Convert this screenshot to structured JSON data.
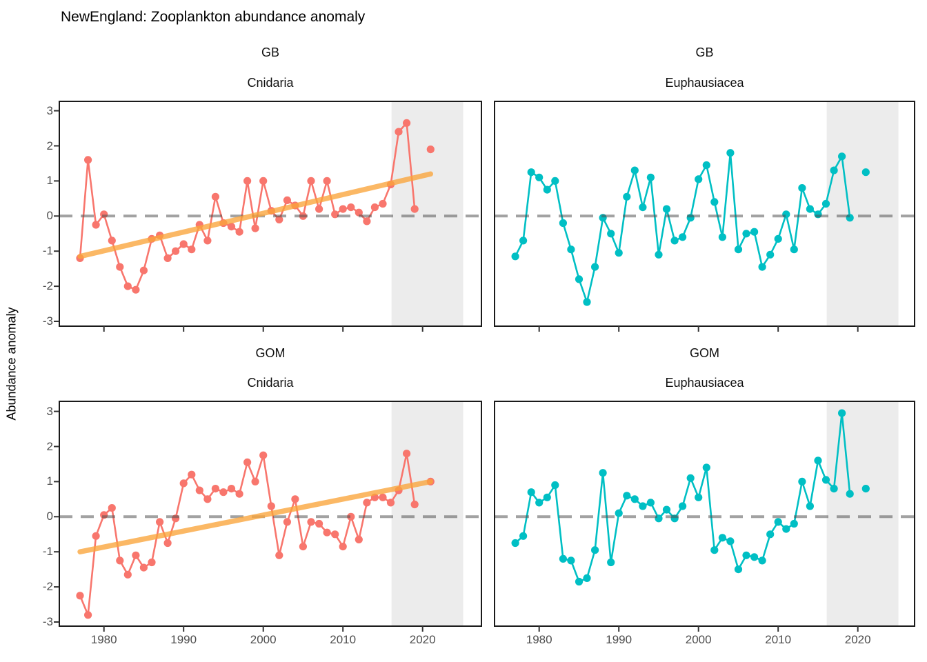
{
  "title": "NewEngland: Zooplankton abundance anomaly",
  "ylabel": "Abundance anomaly",
  "colors": {
    "cnidaria_series": "#F8766D",
    "euphausiacea_series": "#00BFC4",
    "trend_line": "rgba(250,164,58,0.78)",
    "zero_dash": "rgba(77,77,77,0.52)",
    "forecast_band": "#ECECEC",
    "panel_border": "#1a1a1a",
    "tick_mark": "#333333",
    "tick_text": "#4d4d4d"
  },
  "chart_data": {
    "type": "line",
    "title": "NewEngland: Zooplankton abundance anomaly",
    "xlabel": "",
    "ylabel": "Abundance anomaly",
    "x_ticks": [
      1980,
      1990,
      2000,
      2010,
      2020
    ],
    "y_ticks": [
      3,
      2,
      1,
      0,
      -1,
      -2,
      -3
    ],
    "ylim": [
      -3.25,
      3.25
    ],
    "xlim": [
      1974.4,
      2027.4
    ],
    "grid": "off",
    "legend": "none",
    "zero_reference_line": 0,
    "highlight_band_years": [
      2016.1,
      2025.1
    ],
    "years": [
      1977,
      1978,
      1979,
      1980,
      1981,
      1982,
      1983,
      1984,
      1985,
      1986,
      1987,
      1988,
      1989,
      1990,
      1991,
      1992,
      1993,
      1994,
      1995,
      1996,
      1997,
      1998,
      1999,
      2000,
      2001,
      2002,
      2003,
      2004,
      2005,
      2006,
      2007,
      2008,
      2009,
      2010,
      2011,
      2012,
      2013,
      2014,
      2015,
      2016,
      2017,
      2018,
      2019,
      2021
    ],
    "panels": [
      {
        "region": "GB",
        "taxon": "Cnidaria",
        "color": "#F8766D",
        "values": [
          -1.2,
          1.6,
          -0.25,
          0.05,
          -0.7,
          -1.45,
          -2.0,
          -2.1,
          -1.55,
          -0.65,
          -0.55,
          -1.2,
          -1.0,
          -0.8,
          -0.95,
          -0.25,
          -0.7,
          0.55,
          -0.2,
          -0.3,
          -0.45,
          1.0,
          -0.35,
          1.0,
          0.15,
          -0.1,
          0.45,
          0.3,
          0.0,
          1.0,
          0.2,
          1.0,
          0.05,
          0.2,
          0.25,
          0.1,
          -0.15,
          0.25,
          0.35,
          0.9,
          2.4,
          2.65,
          0.2,
          1.9
        ],
        "trend": {
          "x": [
            1977,
            2021
          ],
          "y": [
            -1.15,
            1.2
          ]
        }
      },
      {
        "region": "GB",
        "taxon": "Euphausiacea",
        "color": "#00BFC4",
        "values": [
          -1.15,
          -0.7,
          1.25,
          1.1,
          0.75,
          1.0,
          -0.2,
          -0.95,
          -1.8,
          -2.45,
          -1.45,
          -0.05,
          -0.5,
          -1.05,
          0.55,
          1.3,
          0.25,
          1.1,
          -1.1,
          0.2,
          -0.7,
          -0.6,
          -0.05,
          1.05,
          1.45,
          0.4,
          -0.6,
          1.8,
          -0.95,
          -0.5,
          -0.45,
          -1.45,
          -1.1,
          -0.65,
          0.05,
          -0.95,
          0.8,
          0.2,
          0.05,
          0.35,
          1.3,
          1.7,
          -0.05,
          1.25
        ],
        "trend": null
      },
      {
        "region": "GOM",
        "taxon": "Cnidaria",
        "color": "#F8766D",
        "values": [
          -2.25,
          -2.8,
          -0.55,
          0.05,
          0.25,
          -1.25,
          -1.65,
          -1.1,
          -1.45,
          -1.3,
          -0.15,
          -0.75,
          -0.05,
          0.95,
          1.2,
          0.75,
          0.5,
          0.8,
          0.7,
          0.8,
          0.65,
          1.55,
          1.0,
          1.75,
          0.3,
          -1.1,
          -0.15,
          0.5,
          -0.85,
          -0.15,
          -0.2,
          -0.45,
          -0.5,
          -0.85,
          0.0,
          -0.65,
          0.4,
          0.55,
          0.55,
          0.4,
          0.75,
          1.8,
          0.35,
          1.0
        ],
        "trend": {
          "x": [
            1977,
            2021
          ],
          "y": [
            -1.0,
            1.0
          ]
        }
      },
      {
        "region": "GOM",
        "taxon": "Euphausiacea",
        "color": "#00BFC4",
        "values": [
          -0.75,
          -0.55,
          0.7,
          0.4,
          0.55,
          0.9,
          -1.2,
          -1.25,
          -1.85,
          -1.75,
          -0.95,
          1.25,
          -1.3,
          0.1,
          0.6,
          0.5,
          0.3,
          0.4,
          -0.05,
          0.2,
          -0.05,
          0.3,
          1.1,
          0.55,
          1.4,
          -0.95,
          -0.6,
          -0.7,
          -1.5,
          -1.1,
          -1.15,
          -1.25,
          -0.5,
          -0.15,
          -0.35,
          -0.2,
          1.0,
          0.3,
          1.6,
          1.05,
          0.8,
          2.95,
          0.65,
          0.8
        ],
        "trend": null
      }
    ]
  }
}
